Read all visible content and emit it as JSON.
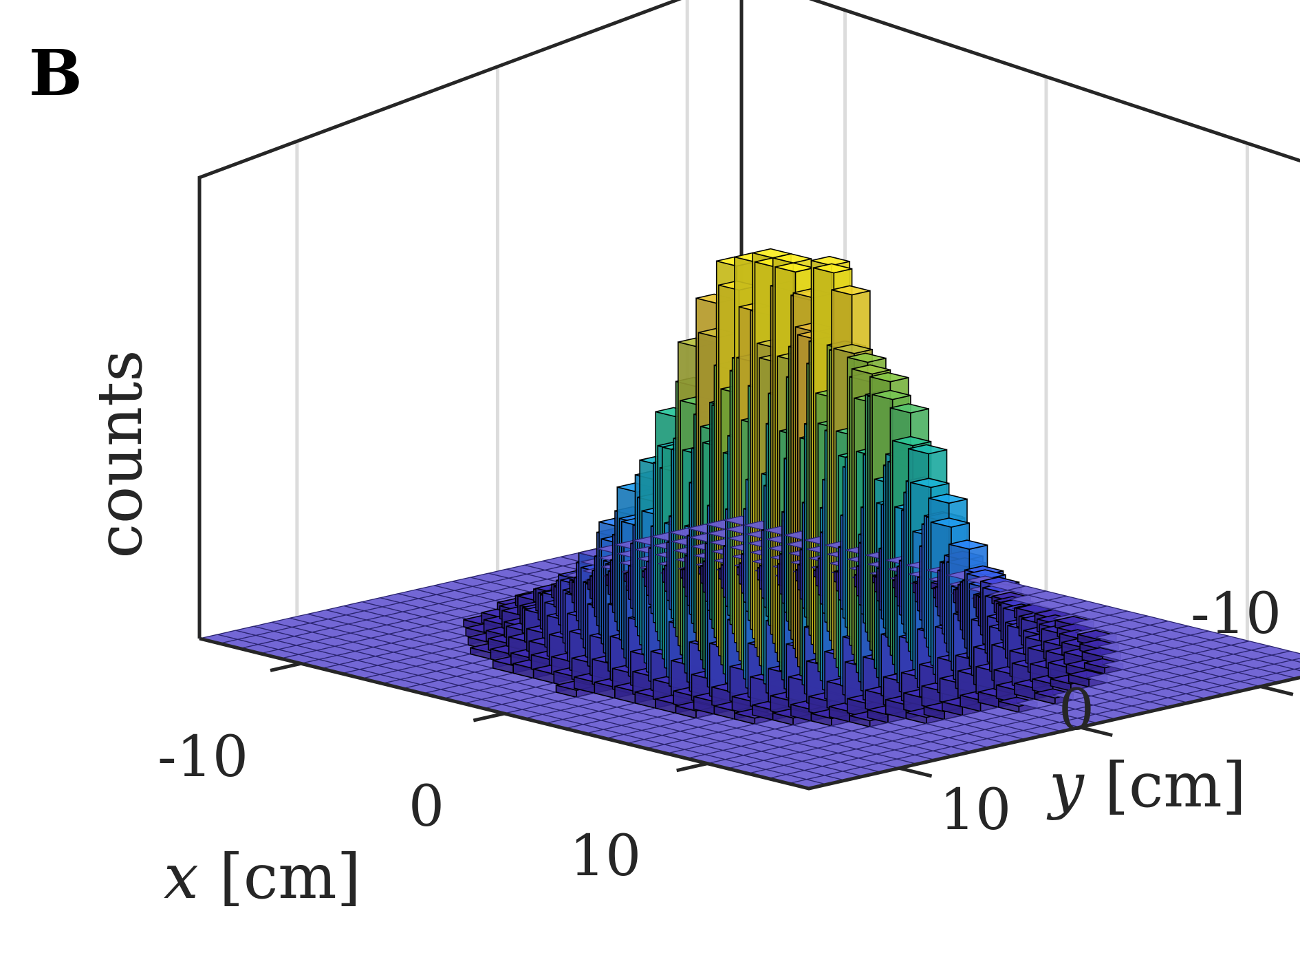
{
  "panel_label": "B",
  "colors": {
    "axis": "#262626",
    "grid": "#dcdcdc",
    "bar_edge": "#000000",
    "floor": "#6b5fd3",
    "colormap": [
      "#3e26a8",
      "#4347e0",
      "#2d7ff9",
      "#19aee7",
      "#27c59a",
      "#8bc845",
      "#e2b93a",
      "#fcee21"
    ]
  },
  "chart_data": {
    "type": "bar3d-histogram",
    "title": "",
    "xlabel": {
      "var": "x",
      "unit": "[cm]"
    },
    "ylabel": {
      "var": "y",
      "unit": "[cm]"
    },
    "zlabel": "counts",
    "x_ticks": [
      -10,
      0,
      10
    ],
    "y_ticks": [
      -10,
      0,
      10
    ],
    "xlim": [
      -15,
      15
    ],
    "ylim": [
      -15,
      15
    ],
    "bins_per_axis": 30,
    "bin_width_cm": 1,
    "distribution": "2D Gaussian, centered near (x=0, y=0), sigma ≈ 4 cm",
    "peak_bin": {
      "x": 0,
      "y": -1
    },
    "z_ticks_shown": false,
    "grid": "vertical lines on back walls",
    "colormap": "parula (height-based)"
  }
}
